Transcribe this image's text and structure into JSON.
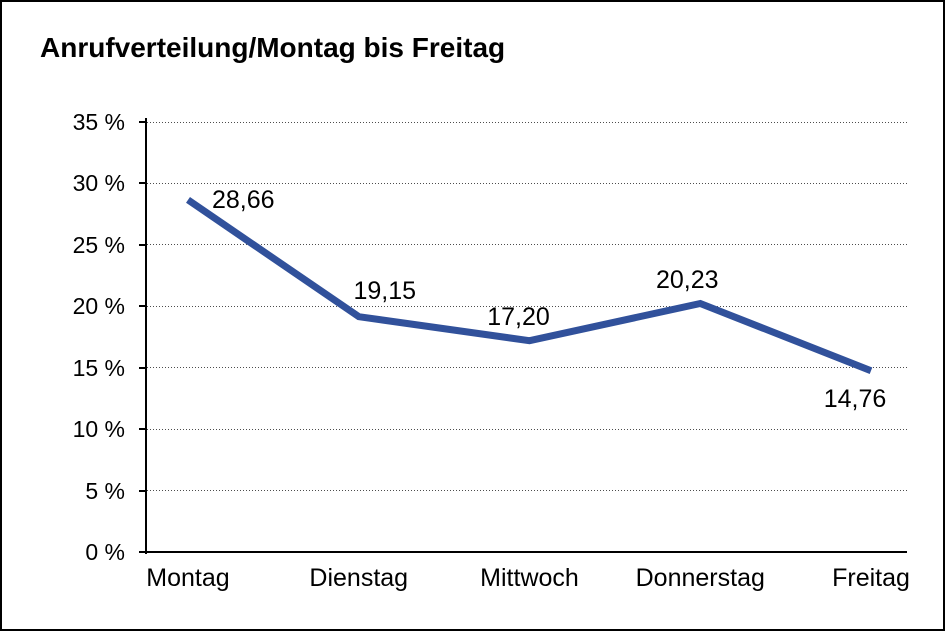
{
  "window": {
    "background_color": "#ffffff",
    "border_color": "#000000"
  },
  "chart_data": {
    "type": "line",
    "title": "Anrufverteilung/Montag bis Freitag",
    "categories": [
      "Montag",
      "Dienstag",
      "Mittwoch",
      "Donnerstag",
      "Freitag"
    ],
    "series": [
      {
        "name": "Anrufverteilung",
        "values": [
          28.66,
          19.15,
          17.2,
          20.23,
          14.76
        ],
        "value_labels": [
          "28,66",
          "19,15",
          "17,20",
          "20,23",
          "14,76"
        ]
      }
    ],
    "xlabel": "",
    "ylabel": "",
    "ylim": [
      0,
      35
    ],
    "y_ticks": [
      0,
      5,
      10,
      15,
      20,
      25,
      30,
      35
    ],
    "y_tick_labels": [
      "0 %",
      "5 %",
      "10 %",
      "15 %",
      "20 %",
      "25 %",
      "30 %",
      "35 %"
    ],
    "grid": "horizontal-dotted",
    "legend": "none",
    "line_color": "#31519B",
    "text_color": "#000000"
  }
}
